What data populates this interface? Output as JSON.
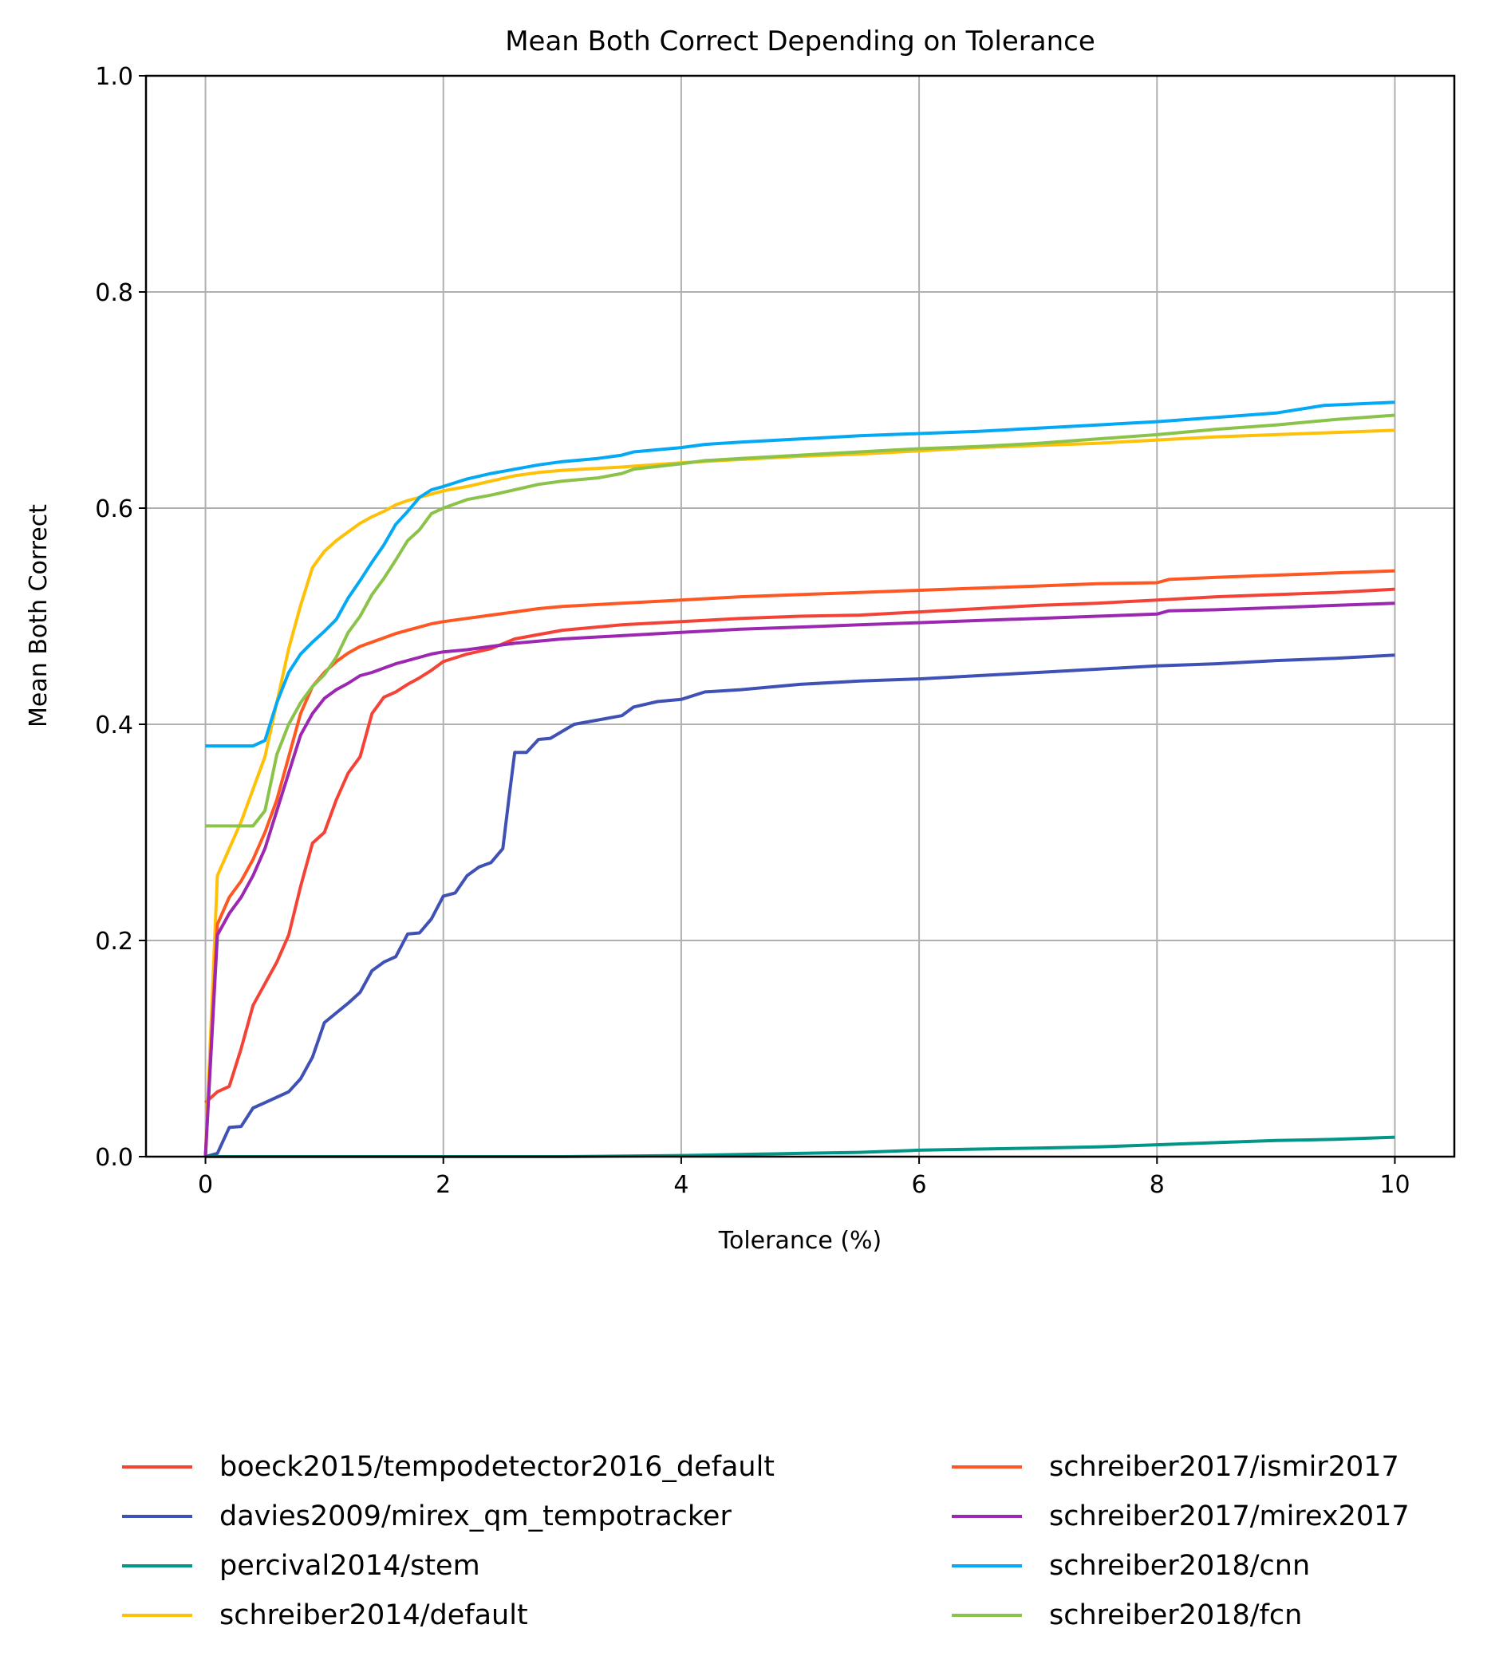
{
  "chart_data": {
    "type": "line",
    "title": "Mean Both Correct Depending on Tolerance",
    "xlabel": "Tolerance (%)",
    "ylabel": "Mean Both Correct",
    "xlim": [
      -0.5,
      10.5
    ],
    "ylim": [
      0,
      1.0
    ],
    "xticks": [
      0,
      2,
      4,
      6,
      8,
      10
    ],
    "yticks": [
      0.0,
      0.2,
      0.4,
      0.6,
      0.8,
      1.0
    ],
    "grid": true,
    "legend_position": "bottom",
    "series": [
      {
        "name": "boeck2015/tempodetector2016_default",
        "color": "#f44336",
        "x": [
          0,
          0.1,
          0.2,
          0.3,
          0.4,
          0.5,
          0.6,
          0.7,
          0.8,
          0.9,
          1.0,
          1.1,
          1.2,
          1.3,
          1.4,
          1.5,
          1.6,
          1.7,
          1.8,
          1.9,
          2.0,
          2.2,
          2.4,
          2.6,
          2.8,
          3,
          3.5,
          4,
          4.5,
          5,
          5.5,
          6,
          6.5,
          7,
          7.5,
          8,
          8.5,
          9,
          9.5,
          10
        ],
        "values": [
          0.05,
          0.06,
          0.065,
          0.1,
          0.14,
          0.16,
          0.18,
          0.205,
          0.25,
          0.29,
          0.3,
          0.33,
          0.355,
          0.37,
          0.41,
          0.425,
          0.43,
          0.437,
          0.443,
          0.45,
          0.458,
          0.465,
          0.47,
          0.479,
          0.483,
          0.487,
          0.492,
          0.495,
          0.498,
          0.5,
          0.501,
          0.504,
          0.507,
          0.51,
          0.512,
          0.515,
          0.518,
          0.52,
          0.522,
          0.525
        ]
      },
      {
        "name": "davies2009/mirex_qm_tempotracker",
        "color": "#3f51b5",
        "x": [
          0,
          0.1,
          0.2,
          0.3,
          0.4,
          0.5,
          0.6,
          0.7,
          0.8,
          0.9,
          1.0,
          1.1,
          1.2,
          1.3,
          1.4,
          1.5,
          1.6,
          1.7,
          1.8,
          1.9,
          2.0,
          2.1,
          2.2,
          2.3,
          2.4,
          2.5,
          2.55,
          2.6,
          2.7,
          2.8,
          2.9,
          3.1,
          3.3,
          3.5,
          3.6,
          3.8,
          4,
          4.2,
          4.5,
          5,
          5.5,
          6,
          6.5,
          7,
          7.5,
          8,
          8.5,
          9,
          9.5,
          10
        ],
        "values": [
          0,
          0.003,
          0.027,
          0.028,
          0.045,
          0.05,
          0.055,
          0.06,
          0.072,
          0.092,
          0.124,
          0.133,
          0.142,
          0.152,
          0.172,
          0.18,
          0.185,
          0.206,
          0.207,
          0.22,
          0.241,
          0.244,
          0.26,
          0.268,
          0.272,
          0.285,
          0.33,
          0.374,
          0.374,
          0.386,
          0.387,
          0.4,
          0.404,
          0.408,
          0.416,
          0.421,
          0.423,
          0.43,
          0.432,
          0.437,
          0.44,
          0.442,
          0.445,
          0.448,
          0.451,
          0.454,
          0.456,
          0.459,
          0.461,
          0.464
        ]
      },
      {
        "name": "percival2014/stem",
        "color": "#009688",
        "x": [
          0,
          1,
          2,
          3,
          4,
          4.5,
          5,
          5.5,
          6,
          6.5,
          7,
          7.5,
          8,
          8.5,
          9,
          9.5,
          10
        ],
        "values": [
          0,
          0,
          0,
          0,
          0.001,
          0.002,
          0.003,
          0.004,
          0.006,
          0.007,
          0.008,
          0.009,
          0.011,
          0.013,
          0.015,
          0.016,
          0.018
        ]
      },
      {
        "name": "schreiber2014/default",
        "color": "#ffc107",
        "x": [
          0,
          0.1,
          0.2,
          0.3,
          0.4,
          0.5,
          0.6,
          0.7,
          0.8,
          0.9,
          1.0,
          1.1,
          1.2,
          1.3,
          1.4,
          1.5,
          1.6,
          1.7,
          1.8,
          1.9,
          2.0,
          2.2,
          2.4,
          2.6,
          2.8,
          3,
          3.5,
          4,
          4.5,
          5,
          5.5,
          6,
          6.5,
          7,
          7.5,
          8,
          8.5,
          9,
          9.5,
          10
        ],
        "values": [
          0,
          0.26,
          0.285,
          0.31,
          0.34,
          0.37,
          0.42,
          0.47,
          0.51,
          0.545,
          0.56,
          0.57,
          0.578,
          0.586,
          0.592,
          0.597,
          0.603,
          0.607,
          0.61,
          0.613,
          0.616,
          0.62,
          0.625,
          0.63,
          0.633,
          0.635,
          0.638,
          0.642,
          0.645,
          0.648,
          0.65,
          0.653,
          0.656,
          0.658,
          0.66,
          0.663,
          0.666,
          0.668,
          0.67,
          0.672
        ]
      },
      {
        "name": "schreiber2017/ismir2017",
        "color": "#ff5722",
        "x": [
          0,
          0.1,
          0.2,
          0.3,
          0.4,
          0.5,
          0.6,
          0.7,
          0.8,
          0.9,
          1.0,
          1.1,
          1.2,
          1.3,
          1.4,
          1.5,
          1.6,
          1.7,
          1.8,
          1.9,
          2.0,
          2.2,
          2.4,
          2.6,
          2.8,
          3,
          3.5,
          4,
          4.5,
          5,
          5.5,
          6,
          6.5,
          7,
          7.5,
          8,
          8.1,
          8.5,
          9,
          9.5,
          10
        ],
        "values": [
          0,
          0.215,
          0.24,
          0.255,
          0.275,
          0.3,
          0.33,
          0.37,
          0.41,
          0.435,
          0.448,
          0.458,
          0.466,
          0.472,
          0.476,
          0.48,
          0.484,
          0.487,
          0.49,
          0.493,
          0.495,
          0.498,
          0.501,
          0.504,
          0.507,
          0.509,
          0.512,
          0.515,
          0.518,
          0.52,
          0.522,
          0.524,
          0.526,
          0.528,
          0.53,
          0.531,
          0.534,
          0.536,
          0.538,
          0.54,
          0.542
        ]
      },
      {
        "name": "schreiber2017/mirex2017",
        "color": "#9c27b0",
        "x": [
          0,
          0.1,
          0.2,
          0.3,
          0.4,
          0.5,
          0.6,
          0.7,
          0.8,
          0.9,
          1.0,
          1.1,
          1.2,
          1.3,
          1.4,
          1.5,
          1.6,
          1.7,
          1.8,
          1.9,
          2.0,
          2.2,
          2.4,
          2.6,
          2.8,
          3,
          3.5,
          4,
          4.5,
          5,
          5.5,
          6,
          6.5,
          7,
          7.5,
          8,
          8.1,
          8.5,
          9,
          9.5,
          10
        ],
        "values": [
          0,
          0.205,
          0.225,
          0.24,
          0.26,
          0.285,
          0.32,
          0.355,
          0.39,
          0.41,
          0.424,
          0.432,
          0.438,
          0.445,
          0.448,
          0.452,
          0.456,
          0.459,
          0.462,
          0.465,
          0.467,
          0.469,
          0.472,
          0.475,
          0.477,
          0.479,
          0.482,
          0.485,
          0.488,
          0.49,
          0.492,
          0.494,
          0.496,
          0.498,
          0.5,
          0.502,
          0.505,
          0.506,
          0.508,
          0.51,
          0.512
        ]
      },
      {
        "name": "schreiber2018/cnn",
        "color": "#03a9f4",
        "x": [
          0,
          0.1,
          0.2,
          0.3,
          0.4,
          0.5,
          0.6,
          0.7,
          0.8,
          0.9,
          1.0,
          1.1,
          1.2,
          1.3,
          1.4,
          1.5,
          1.6,
          1.7,
          1.8,
          1.9,
          2.0,
          2.2,
          2.4,
          2.6,
          2.8,
          3,
          3.3,
          3.5,
          3.6,
          4,
          4.2,
          4.5,
          5,
          5.5,
          6,
          6.5,
          7,
          7.5,
          8,
          8.5,
          9,
          9.4,
          10
        ],
        "values": [
          0.38,
          0.38,
          0.38,
          0.38,
          0.38,
          0.385,
          0.42,
          0.448,
          0.465,
          0.476,
          0.486,
          0.497,
          0.517,
          0.533,
          0.55,
          0.566,
          0.585,
          0.597,
          0.61,
          0.617,
          0.62,
          0.627,
          0.632,
          0.636,
          0.64,
          0.643,
          0.646,
          0.649,
          0.652,
          0.656,
          0.659,
          0.661,
          0.664,
          0.667,
          0.669,
          0.671,
          0.674,
          0.677,
          0.68,
          0.684,
          0.688,
          0.695,
          0.698
        ]
      },
      {
        "name": "schreiber2018/fcn",
        "color": "#8bc34a",
        "x": [
          0,
          0.1,
          0.2,
          0.3,
          0.4,
          0.5,
          0.6,
          0.7,
          0.8,
          0.9,
          1.0,
          1.1,
          1.2,
          1.3,
          1.4,
          1.5,
          1.6,
          1.7,
          1.8,
          1.9,
          2.0,
          2.2,
          2.4,
          2.6,
          2.8,
          3,
          3.3,
          3.5,
          3.6,
          4,
          4.2,
          4.5,
          5,
          5.5,
          6,
          6.5,
          7,
          7.5,
          8,
          8.5,
          9,
          9.5,
          10
        ],
        "values": [
          0.306,
          0.306,
          0.306,
          0.306,
          0.306,
          0.32,
          0.372,
          0.4,
          0.42,
          0.435,
          0.446,
          0.462,
          0.485,
          0.5,
          0.52,
          0.535,
          0.552,
          0.57,
          0.58,
          0.595,
          0.6,
          0.608,
          0.612,
          0.617,
          0.622,
          0.625,
          0.628,
          0.632,
          0.636,
          0.641,
          0.644,
          0.646,
          0.649,
          0.652,
          0.655,
          0.657,
          0.66,
          0.664,
          0.668,
          0.673,
          0.677,
          0.682,
          0.686
        ]
      }
    ]
  }
}
